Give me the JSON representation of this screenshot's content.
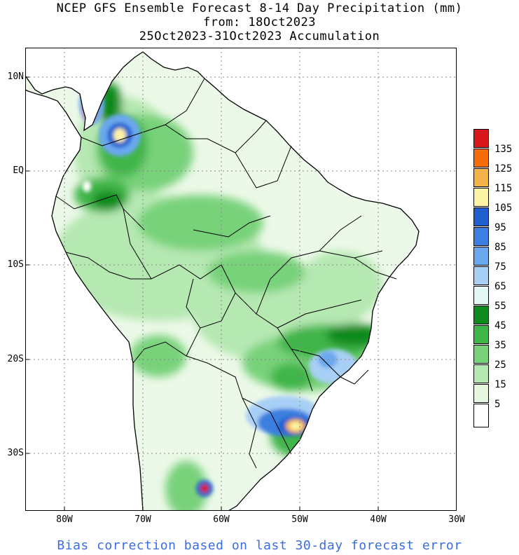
{
  "titles": {
    "line1": "NCEP GFS Ensemble Forecast 8-14 Day Precipitation (mm)",
    "line2": "from: 18Oct2023",
    "line3": "25Oct2023-31Oct2023 Accumulation"
  },
  "footer": "Bias correction based on last 30-day forecast error",
  "axes": {
    "lat_labels": [
      "10N",
      "EQ",
      "10S",
      "20S",
      "30S"
    ],
    "lon_labels": [
      "80W",
      "70W",
      "60W",
      "50W",
      "40W",
      "30W"
    ]
  },
  "legend": {
    "labels": [
      "135",
      "125",
      "115",
      "105",
      "95",
      "85",
      "75",
      "65",
      "55",
      "45",
      "35",
      "25",
      "15",
      "5"
    ],
    "colors": [
      "#d7191c",
      "#f46d0a",
      "#f4b24a",
      "#fdf3a4",
      "#1f5fcf",
      "#3b7fe0",
      "#6aa8ef",
      "#a8cff5",
      "#e2f7f4",
      "#0f8a1e",
      "#3fb54a",
      "#78d27a",
      "#b6e8b2",
      "#e6f7e0",
      "#ffffff"
    ]
  },
  "colors": {
    "land": "#ecf9e8",
    "ocean": "#ffffff",
    "footer_text": "#3a6de0"
  }
}
